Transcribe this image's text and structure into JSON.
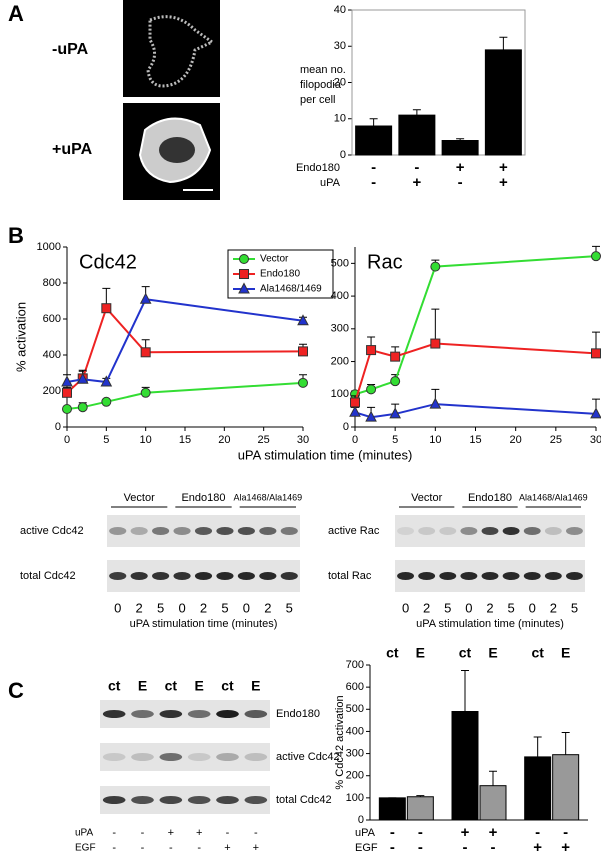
{
  "panel_labels": [
    "A",
    "B",
    "C"
  ],
  "images": {
    "minus_label": "-uPA",
    "plus_label": "+uPA"
  },
  "panel_b_xlabel": "uPA stimulation time (minutes)",
  "chart_data": [
    {
      "type": "bar",
      "ylabel_lines": [
        "mean no.",
        "filopodia",
        "per cell"
      ],
      "values": [
        8,
        11,
        4,
        29
      ],
      "errors": [
        2,
        1.5,
        0.5,
        3.5
      ],
      "color": "#000000",
      "ylim": [
        0,
        40
      ],
      "yticks": [
        0,
        10,
        20,
        30,
        40
      ],
      "frame": true,
      "conditions": [
        {
          "name": "Endo180",
          "labels": [
            "-",
            "-",
            "+",
            "+"
          ]
        },
        {
          "name": "uPA",
          "labels": [
            "-",
            "+",
            "-",
            "+"
          ]
        }
      ]
    },
    {
      "type": "line",
      "title": "Cdc42",
      "ylabel": "% activation",
      "x": [
        0,
        2,
        5,
        10,
        30
      ],
      "xlim": [
        0,
        30
      ],
      "xticks": [
        0,
        5,
        10,
        15,
        20,
        25,
        30
      ],
      "ylim": [
        0,
        1000
      ],
      "yticks": [
        0,
        200,
        400,
        600,
        800,
        1000
      ],
      "legend": "top-right",
      "series": [
        {
          "name": "Vector",
          "color": "#33dd33",
          "marker": "circle",
          "values": [
            100,
            110,
            140,
            190,
            245
          ],
          "errors": [
            10,
            25,
            10,
            30,
            45
          ]
        },
        {
          "name": "Endo180",
          "color": "#ee2222",
          "marker": "square",
          "values": [
            190,
            270,
            660,
            415,
            420
          ],
          "errors": [
            30,
            40,
            110,
            70,
            40
          ]
        },
        {
          "name": "Ala1468/1469",
          "color": "#2233cc",
          "marker": "triangle",
          "values": [
            250,
            265,
            250,
            710,
            590
          ],
          "errors": [
            40,
            50,
            20,
            70,
            20
          ]
        }
      ]
    },
    {
      "type": "line",
      "title": "Rac",
      "x": [
        0,
        2,
        5,
        10,
        30
      ],
      "xlim": [
        0,
        30
      ],
      "xticks": [
        0,
        5,
        10,
        15,
        20,
        25,
        30
      ],
      "ylim": [
        0,
        550
      ],
      "yticks": [
        0,
        100,
        200,
        300,
        400,
        500
      ],
      "series": [
        {
          "color": "#33dd33",
          "marker": "circle",
          "values": [
            100,
            115,
            140,
            490,
            522
          ],
          "errors": [
            10,
            15,
            20,
            20,
            30
          ]
        },
        {
          "color": "#ee2222",
          "marker": "square",
          "values": [
            75,
            235,
            215,
            255,
            225
          ],
          "errors": [
            20,
            40,
            30,
            105,
            65
          ]
        },
        {
          "color": "#2233cc",
          "marker": "triangle",
          "values": [
            45,
            30,
            40,
            70,
            40
          ],
          "errors": [
            15,
            30,
            30,
            45,
            45
          ]
        }
      ]
    },
    {
      "type": "bar",
      "ylabel": "% Cdc42 activation",
      "categories": [
        "ct",
        "E",
        "ct",
        "E",
        "ct",
        "E"
      ],
      "values": [
        100,
        105,
        490,
        155,
        285,
        295
      ],
      "errors": [
        0,
        5,
        185,
        65,
        90,
        100
      ],
      "colors": [
        "#000000",
        "#999999",
        "#000000",
        "#999999",
        "#000000",
        "#999999"
      ],
      "ylim": [
        0,
        700
      ],
      "yticks": [
        0,
        100,
        200,
        300,
        400,
        500,
        600,
        700
      ],
      "conditions": [
        {
          "name": "uPA",
          "labels": [
            "-",
            "-",
            "+",
            "+",
            "-",
            "-"
          ]
        },
        {
          "name": "EGF",
          "labels": [
            "-",
            "-",
            "-",
            "-",
            "+",
            "+"
          ]
        }
      ]
    }
  ],
  "blots_b": [
    {
      "headers": [
        "Vector",
        "Endo180",
        "Ala1468/Ala1469"
      ],
      "rows": [
        "active Cdc42",
        "total Cdc42"
      ],
      "lanes": [
        "0",
        "2",
        "5",
        "0",
        "2",
        "5",
        "0",
        "2",
        "5"
      ],
      "xlabel": "uPA stimulation time (minutes)"
    },
    {
      "headers": [
        "Vector",
        "Endo180",
        "Ala1468/Ala1469"
      ],
      "rows": [
        "active Rac",
        "total Rac"
      ],
      "lanes": [
        "0",
        "2",
        "5",
        "0",
        "2",
        "5",
        "0",
        "2",
        "5"
      ],
      "xlabel": "uPA stimulation time (minutes)"
    }
  ],
  "blot_c": {
    "headers": [
      "ct",
      "E",
      "ct",
      "E",
      "ct",
      "E"
    ],
    "rows": [
      "Endo180",
      "active Cdc42",
      "total Cdc42"
    ],
    "conditions": [
      {
        "name": "uPA",
        "labels": [
          "-",
          "-",
          "+",
          "+",
          "-",
          "-"
        ]
      },
      {
        "name": "EGF",
        "labels": [
          "-",
          "-",
          "-",
          "-",
          "+",
          "+"
        ]
      }
    ]
  }
}
